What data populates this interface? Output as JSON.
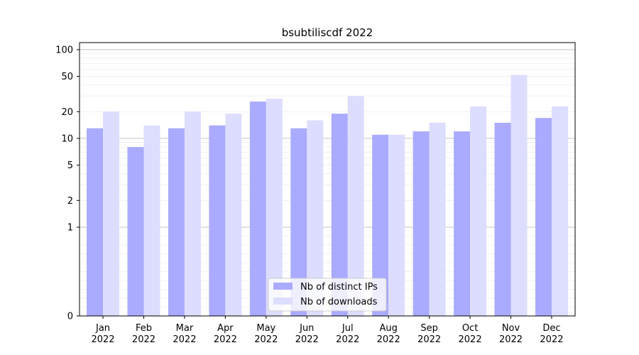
{
  "chart_data": {
    "type": "bar",
    "title": "bsubtiliscdf 2022",
    "yscale": "symlog",
    "ylim": [
      0,
      120
    ],
    "grid": true,
    "legend_position": "lower-center",
    "yticks": [
      0,
      1,
      2,
      5,
      10,
      20,
      50,
      100
    ],
    "ytick_labels": [
      "0",
      "1",
      "2",
      "5",
      "10",
      "20",
      "50",
      "100"
    ],
    "categories": [
      "Jan\n2022",
      "Feb\n2022",
      "Mar\n2022",
      "Apr\n2022",
      "May\n2022",
      "Jun\n2022",
      "Jul\n2022",
      "Aug\n2022",
      "Sep\n2022",
      "Oct\n2022",
      "Nov\n2022",
      "Dec\n2022"
    ],
    "series": [
      {
        "name": "Nb of distinct IPs",
        "color": "#aaaaff",
        "values": [
          13,
          8,
          13,
          14,
          26,
          13,
          19,
          11,
          12,
          12,
          15,
          17
        ]
      },
      {
        "name": "Nb of downloads",
        "color": "#ddddff",
        "values": [
          20,
          14,
          20,
          19,
          28,
          16,
          30,
          11,
          15,
          23,
          52,
          23
        ]
      }
    ]
  }
}
